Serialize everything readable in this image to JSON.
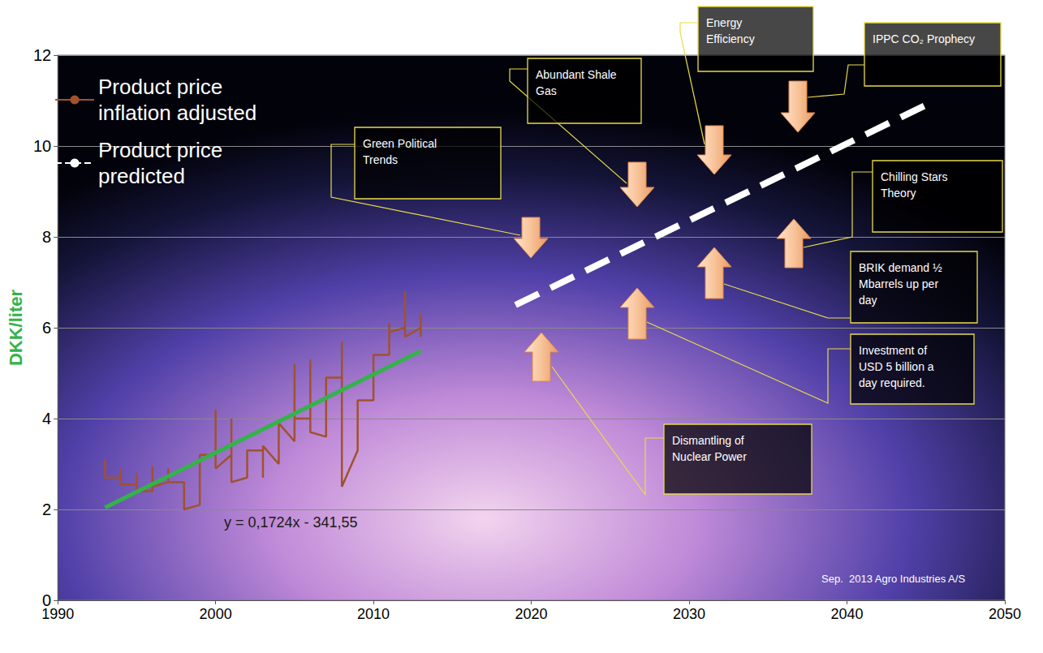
{
  "chart_data": {
    "type": "line",
    "y_label": "DKK/liter",
    "xlim": [
      1990,
      2050
    ],
    "xticks": [
      1990,
      2000,
      2010,
      2020,
      2030,
      2040,
      2050
    ],
    "ylim": [
      0,
      12
    ],
    "yticks": [
      0,
      2,
      4,
      6,
      8,
      10,
      12
    ],
    "grid": true,
    "legend": "upper left",
    "series": [
      {
        "name": "Product price inflation adjusted",
        "color": "#a0522d",
        "line_style": "solid",
        "x": [
          1993,
          1993,
          1994,
          1994,
          1994,
          1995,
          1995,
          1995,
          1996,
          1996,
          1996,
          1997,
          1997,
          1997,
          1998,
          1998,
          1999,
          1999,
          2000,
          2000,
          2000,
          2001,
          2001,
          2001,
          2002,
          2002,
          2003,
          2003,
          2003,
          2004,
          2004,
          2005,
          2005,
          2005,
          2006,
          2006,
          2006,
          2007,
          2007,
          2008,
          2008,
          2008,
          2009,
          2009,
          2010,
          2010,
          2011,
          2011,
          2011,
          2012,
          2012,
          2012,
          2013,
          2013,
          2013
        ],
        "values": [
          3.1,
          2.7,
          2.7,
          2.9,
          2.55,
          2.55,
          2.8,
          2.4,
          2.4,
          2.95,
          2.5,
          2.6,
          2.9,
          2.6,
          2.6,
          2.0,
          2.1,
          3.2,
          3.2,
          4.2,
          2.9,
          3.2,
          4.0,
          2.6,
          2.7,
          3.3,
          3.3,
          2.7,
          3.4,
          3.0,
          3.9,
          3.5,
          5.2,
          4.0,
          4.0,
          5.3,
          3.7,
          3.6,
          4.9,
          4.9,
          5.7,
          2.5,
          3.3,
          4.4,
          4.4,
          5.4,
          5.4,
          6.1,
          5.9,
          6.0,
          6.8,
          5.8,
          6.0,
          6.3,
          5.8
        ]
      },
      {
        "color": "#33b34a",
        "line_style": "solid",
        "x": [
          1993,
          2013
        ],
        "values": [
          2.04,
          5.49
        ]
      },
      {
        "name": "Product price predicted",
        "color": "#ffffff",
        "line_style": "dashed",
        "x": [
          2019,
          2045
        ],
        "values": [
          6.5,
          10.9
        ]
      }
    ],
    "annotations": [
      "Green Political Trends",
      "Abundant Shale Gas",
      "Energy Efficiency",
      "IPPC CO₂ Prophecy",
      "Chilling Stars Theory",
      "BRIK demand ½ Mbarrels up per day",
      "Investment of USD 5 billion a day required.",
      "Dismantling of Nuclear Power"
    ],
    "trend_label": "y = 0,1724x - 341,55",
    "credit": "Sep.  2013 Agro Industries A/S"
  }
}
